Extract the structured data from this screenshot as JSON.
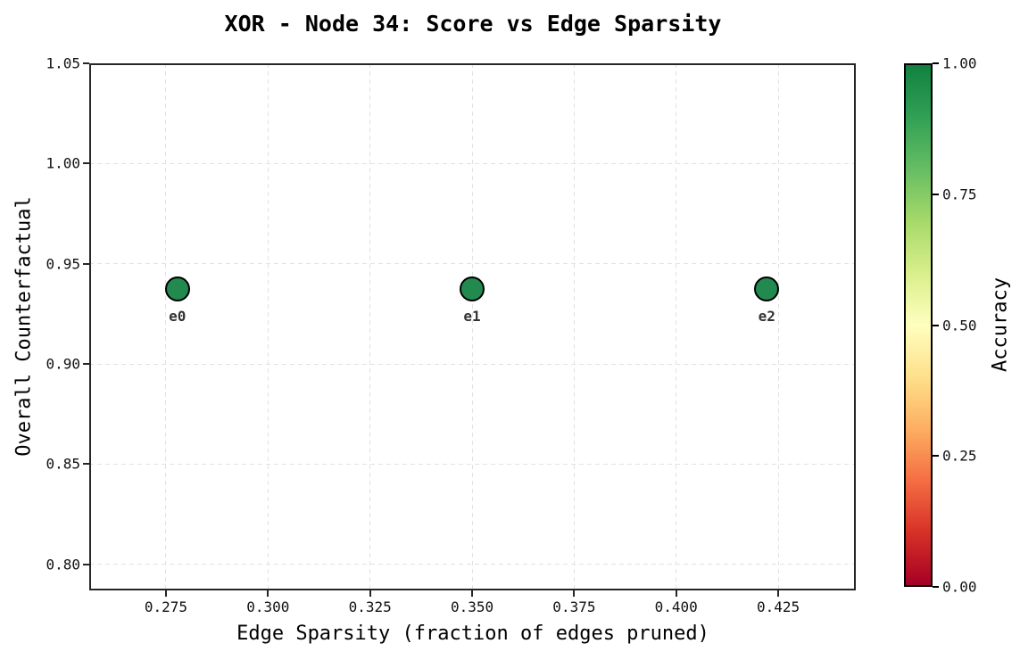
{
  "chart_data": {
    "type": "scatter",
    "title": "XOR - Node 34: Score vs Edge Sparsity",
    "xlabel": "Edge Sparsity (fraction of edges pruned)",
    "ylabel": "Overall Counterfactual",
    "xlim": [
      0.2562,
      0.444
    ],
    "ylim": [
      0.787,
      1.05
    ],
    "grid": true,
    "legend": "none",
    "x_ticks": [
      {
        "value": 0.275,
        "label": "0.275"
      },
      {
        "value": 0.3,
        "label": "0.300"
      },
      {
        "value": 0.325,
        "label": "0.325"
      },
      {
        "value": 0.35,
        "label": "0.350"
      },
      {
        "value": 0.375,
        "label": "0.375"
      },
      {
        "value": 0.4,
        "label": "0.400"
      },
      {
        "value": 0.425,
        "label": "0.425"
      }
    ],
    "y_ticks": [
      {
        "value": 0.8,
        "label": "0.80"
      },
      {
        "value": 0.85,
        "label": "0.85"
      },
      {
        "value": 0.9,
        "label": "0.90"
      },
      {
        "value": 0.95,
        "label": "0.95"
      },
      {
        "value": 1.0,
        "label": "1.00"
      },
      {
        "value": 1.05,
        "label": "1.05"
      }
    ],
    "points": [
      {
        "label": "e0",
        "x": 0.2778,
        "y": 0.9375,
        "accuracy": 1.0
      },
      {
        "label": "e1",
        "x": 0.35,
        "y": 0.9375,
        "accuracy": 1.0
      },
      {
        "label": "e2",
        "x": 0.4222,
        "y": 0.9375,
        "accuracy": 1.0
      }
    ],
    "styles": {
      "marker_color": "#22894f",
      "marker_edge_color": "#000000",
      "point_label_color": "#333333",
      "grid_color": "#e2e2e2",
      "spine_color": "#262626",
      "background": "#ffffff"
    },
    "colorbar": {
      "label": "Accuracy",
      "ticks": [
        {
          "value": 1.0,
          "label": "1.00"
        },
        {
          "value": 0.75,
          "label": "0.75"
        },
        {
          "value": 0.5,
          "label": "0.50"
        },
        {
          "value": 0.25,
          "label": "0.25"
        },
        {
          "value": 0.0,
          "label": "0.00"
        }
      ],
      "gradient": [
        {
          "pos": 0.0,
          "color": "#a50026"
        },
        {
          "pos": 0.1,
          "color": "#d73027"
        },
        {
          "pos": 0.2,
          "color": "#f46d43"
        },
        {
          "pos": 0.3,
          "color": "#fdae61"
        },
        {
          "pos": 0.4,
          "color": "#fee08b"
        },
        {
          "pos": 0.5,
          "color": "#ffffbf"
        },
        {
          "pos": 0.6,
          "color": "#d9ef8b"
        },
        {
          "pos": 0.7,
          "color": "#a6d96a"
        },
        {
          "pos": 0.8,
          "color": "#66bd63"
        },
        {
          "pos": 0.9,
          "color": "#31a055"
        },
        {
          "pos": 1.0,
          "color": "#11813f"
        }
      ]
    }
  }
}
